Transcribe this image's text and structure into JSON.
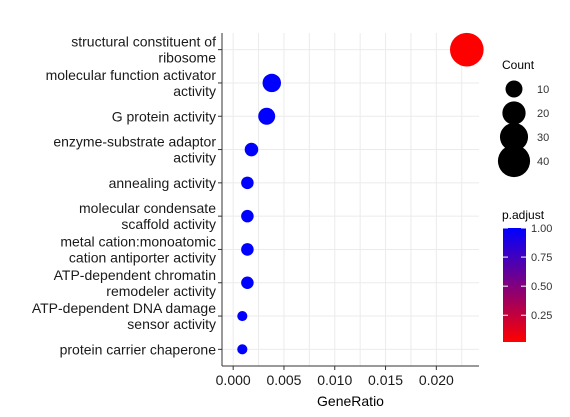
{
  "chart_data": {
    "type": "scatter",
    "xlabel": "GeneRatio",
    "xlim": [
      -0.0011,
      0.0242
    ],
    "xticks": [
      0.0,
      0.005,
      0.01,
      0.015,
      0.02
    ],
    "xtick_labels": [
      "0.000",
      "0.005",
      "0.010",
      "0.015",
      "0.020"
    ],
    "grid": true,
    "categories": [
      {
        "lines": [
          "structural constituent of",
          "ribosome"
        ],
        "gene_ratio": 0.023,
        "count": 44,
        "p_adjust": 0.02
      },
      {
        "lines": [
          "molecular function activator",
          "activity"
        ],
        "gene_ratio": 0.0038,
        "count": 12,
        "p_adjust": 1.0
      },
      {
        "lines": [
          "G protein activity"
        ],
        "gene_ratio": 0.0033,
        "count": 10,
        "p_adjust": 1.0
      },
      {
        "lines": [
          "enzyme-substrate adaptor",
          "activity"
        ],
        "gene_ratio": 0.0018,
        "count": 6,
        "p_adjust": 1.0
      },
      {
        "lines": [
          "annealing activity"
        ],
        "gene_ratio": 0.0014,
        "count": 5,
        "p_adjust": 1.0
      },
      {
        "lines": [
          "molecular condensate",
          "scaffold activity"
        ],
        "gene_ratio": 0.0014,
        "count": 5,
        "p_adjust": 1.0
      },
      {
        "lines": [
          "metal cation:monoatomic",
          "cation antiporter activity"
        ],
        "gene_ratio": 0.0014,
        "count": 5,
        "p_adjust": 1.0
      },
      {
        "lines": [
          "ATP-dependent chromatin",
          "remodeler activity"
        ],
        "gene_ratio": 0.0014,
        "count": 5,
        "p_adjust": 1.0
      },
      {
        "lines": [
          "ATP-dependent DNA damage",
          "sensor activity"
        ],
        "gene_ratio": 0.0009,
        "count": 3,
        "p_adjust": 1.0
      },
      {
        "lines": [
          "protein carrier chaperone"
        ],
        "gene_ratio": 0.0009,
        "count": 3,
        "p_adjust": 1.0
      }
    ],
    "size_legend": {
      "title": "Count",
      "values": [
        10,
        20,
        30,
        40
      ],
      "labels": [
        "10",
        "20",
        "30",
        "40"
      ]
    },
    "color_legend": {
      "title": "p.adjust",
      "ticks": [
        0.25,
        0.5,
        0.75,
        1.0
      ],
      "labels": [
        "0.25",
        "0.50",
        "0.75",
        "1.00"
      ],
      "range": [
        0.02,
        1.0
      ],
      "low_color": "#ff0000",
      "high_color": "#0000ff"
    },
    "colors": {
      "panel_background": "#ffffff",
      "grid": "#ebebeb",
      "axis": "#333333"
    }
  }
}
